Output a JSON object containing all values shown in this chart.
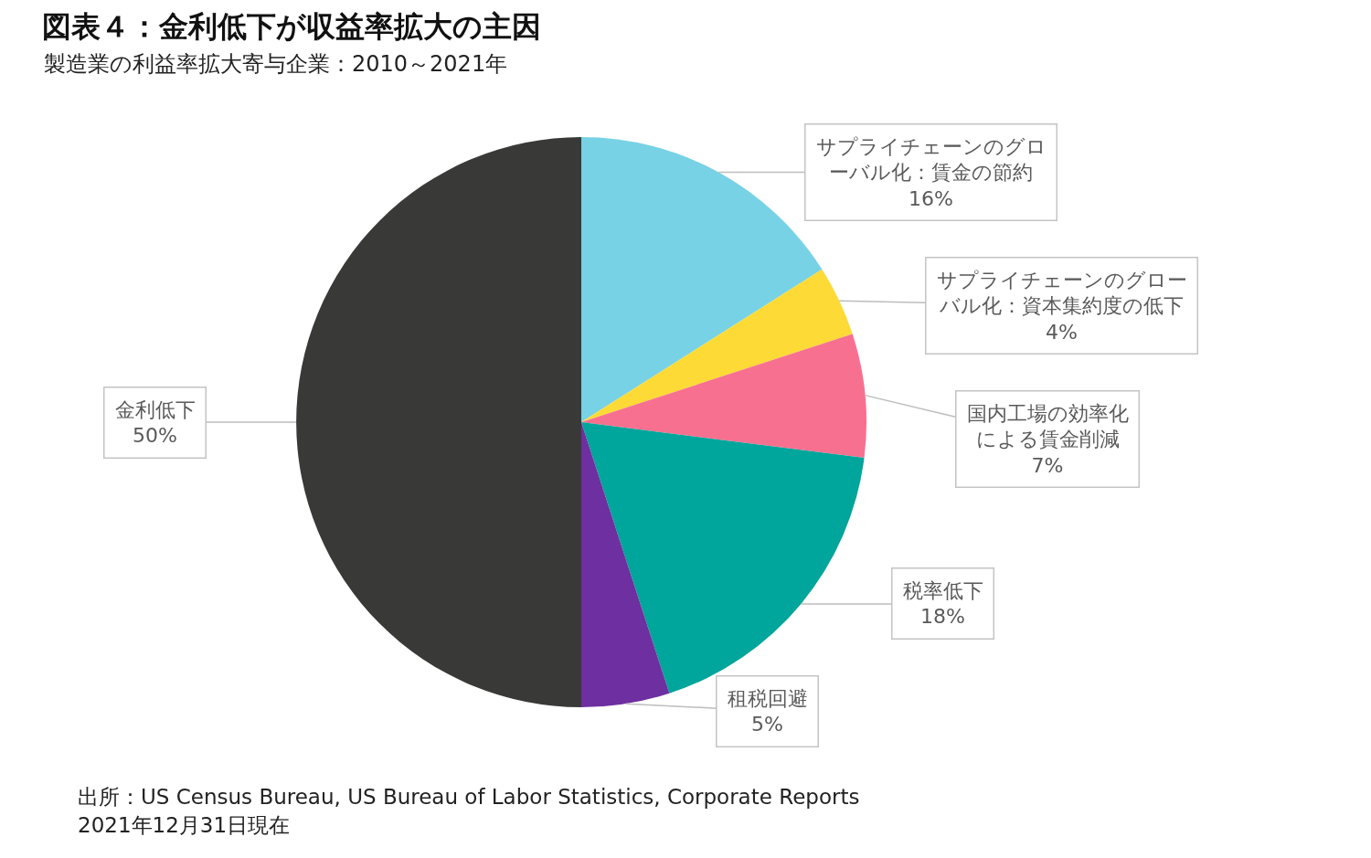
{
  "chart_data": {
    "type": "pie",
    "title": "図表４：金利低下が収益率拡大の主因",
    "subtitle": "製造業の利益率拡大寄与企業：2010～2021年",
    "categories": [
      "サプライチェーンのグローバル化：賃金の節約",
      "サプライチェーンのグローバル化：資本集約度の低下",
      "国内工場の効率化による賃金削減",
      "税率低下",
      "租税回避",
      "金利低下"
    ],
    "values": [
      16,
      4,
      7,
      18,
      5,
      50
    ],
    "colors": [
      "#78d2e5",
      "#fdda35",
      "#f8708f",
      "#00a59b",
      "#6e2fa0",
      "#393a37"
    ],
    "value_labels": [
      "16%",
      "4%",
      "7%",
      "18%",
      "5%",
      "50%"
    ],
    "annotations": [
      "出所：US Census Bureau, US Bureau of Labor Statistics, Corporate Reports",
      "2021年12月31日現在"
    ]
  }
}
